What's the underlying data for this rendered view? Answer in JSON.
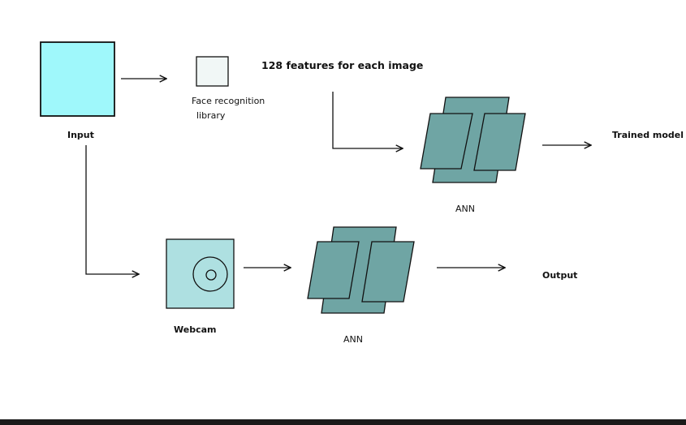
{
  "labels": {
    "input": "Input",
    "face_recognition_line1": "Face recognition",
    "face_recognition_line2": "library",
    "features": "128 features for each image",
    "ann_top": "ANN",
    "trained_model": "Trained model",
    "webcam": "Webcam",
    "ann_bottom": "ANN",
    "output": "Output"
  },
  "colors": {
    "input_box": "#9ff8fb",
    "face_box": "#f1f7f6",
    "webcam_box": "#aee0e1",
    "ann_fill": "#6fa5a4",
    "stroke": "#111111",
    "bottom_bar": "#1a1a1a"
  }
}
